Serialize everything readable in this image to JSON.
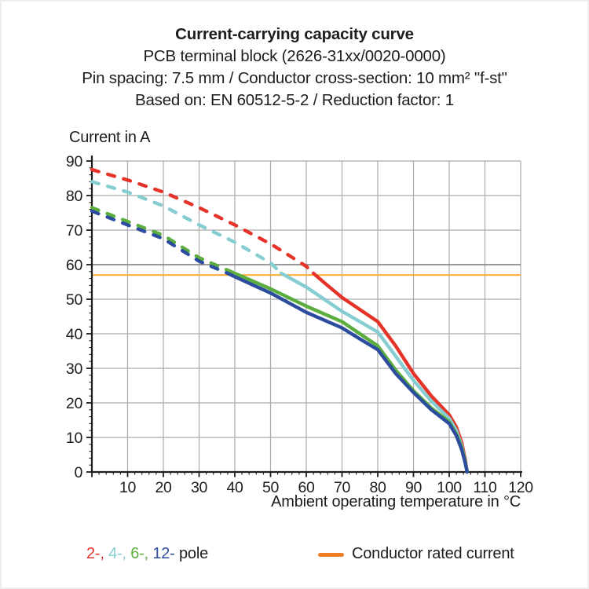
{
  "title": {
    "line1": "Current-carrying capacity curve",
    "line2": "PCB terminal block (2626-31xx/0020-0000)",
    "line3": "Pin spacing: 7.5 mm / Conductor cross-section: 10 mm² \"f-st\"",
    "line4": "Based on: EN 60512-5-2 / Reduction factor: 1"
  },
  "legend": {
    "pole_parts": [
      {
        "text": "2-,",
        "color": "#E5332A"
      },
      {
        "text": "4-,",
        "color": "#86CDD2"
      },
      {
        "text": "6-,",
        "color": "#5BAD3E"
      },
      {
        "text": "12-",
        "color": "#2C4D9E"
      },
      {
        "text": "pole",
        "color": "#1D1D1B"
      }
    ],
    "rated_current_label": "Conductor rated current",
    "rated_current_swatch_color": "#EE7D23"
  },
  "chart_data": {
    "type": "line",
    "title": "Current-carrying capacity curve",
    "xlabel": "Ambient operating temperature in °C",
    "ylabel": "Current in A",
    "xlim": [
      0,
      120
    ],
    "ylim": [
      0,
      90
    ],
    "xticks": [
      10,
      20,
      30,
      40,
      50,
      60,
      70,
      80,
      90,
      100,
      110,
      120
    ],
    "yticks": [
      0,
      10,
      20,
      30,
      40,
      50,
      60,
      70,
      80,
      90
    ],
    "minor_tick_step": 2,
    "grid": true,
    "colors": {
      "grid": "#ABABAB",
      "emphasized_grid": "#7F7F7F",
      "axis": "#1D1D1B",
      "rated_current_line": "#F9AE3D"
    },
    "reference_lines": [
      {
        "name": "conductor-rated-current",
        "axis": "y",
        "value": 57,
        "color": "#F9AE3D",
        "width": 2.2
      },
      {
        "name": "emphasized-60A-gridline",
        "axis": "y",
        "value": 60,
        "color": "#7F7F7F",
        "width": 1.6
      }
    ],
    "line_style_note": "curves dashed above conductor rated current, solid below",
    "series": [
      {
        "name": "2-pole",
        "color": "#E5332A",
        "transition_temp": 62,
        "points": [
          [
            0,
            87.5
          ],
          [
            10,
            84.5
          ],
          [
            20,
            81
          ],
          [
            30,
            76.5
          ],
          [
            40,
            71.5
          ],
          [
            50,
            66
          ],
          [
            55,
            62.8
          ],
          [
            60,
            59.5
          ],
          [
            62,
            57.5
          ],
          [
            65,
            54.8
          ],
          [
            70,
            50.5
          ],
          [
            75,
            47
          ],
          [
            80,
            43.5
          ],
          [
            85,
            36.5
          ],
          [
            90,
            28.5
          ],
          [
            95,
            22
          ],
          [
            100,
            16.5
          ],
          [
            102,
            13
          ],
          [
            103.5,
            8.5
          ],
          [
            104.5,
            3.5
          ],
          [
            105,
            0
          ]
        ]
      },
      {
        "name": "4-pole",
        "color": "#86CDD2",
        "transition_temp": 53,
        "points": [
          [
            0,
            84
          ],
          [
            10,
            81
          ],
          [
            20,
            77
          ],
          [
            30,
            71.5
          ],
          [
            40,
            66.5
          ],
          [
            50,
            60.5
          ],
          [
            53,
            57.5
          ],
          [
            60,
            53.5
          ],
          [
            65,
            50
          ],
          [
            70,
            46.5
          ],
          [
            75,
            43.5
          ],
          [
            80,
            40.5
          ],
          [
            85,
            33.5
          ],
          [
            90,
            26.5
          ],
          [
            95,
            20.5
          ],
          [
            100,
            15.5
          ],
          [
            102,
            12
          ],
          [
            103.5,
            7.5
          ],
          [
            104.5,
            3
          ],
          [
            105,
            0
          ]
        ]
      },
      {
        "name": "6-pole",
        "color": "#5BAD3E",
        "transition_temp": 40,
        "points": [
          [
            0,
            76.5
          ],
          [
            10,
            72.5
          ],
          [
            20,
            68.5
          ],
          [
            30,
            62
          ],
          [
            40,
            57.5
          ],
          [
            50,
            53
          ],
          [
            60,
            48
          ],
          [
            70,
            43.5
          ],
          [
            75,
            40
          ],
          [
            80,
            36.5
          ],
          [
            85,
            29.5
          ],
          [
            90,
            23.5
          ],
          [
            95,
            18.5
          ],
          [
            100,
            14.5
          ],
          [
            102,
            11
          ],
          [
            103.5,
            7
          ],
          [
            104.5,
            3
          ],
          [
            105,
            0
          ]
        ]
      },
      {
        "name": "12-pole",
        "color": "#2C4D9E",
        "transition_temp": 38,
        "points": [
          [
            0,
            75.5
          ],
          [
            10,
            71.5
          ],
          [
            20,
            67.5
          ],
          [
            30,
            61
          ],
          [
            38,
            57.5
          ],
          [
            40,
            56.5
          ],
          [
            50,
            51.8
          ],
          [
            60,
            46.2
          ],
          [
            70,
            41.7
          ],
          [
            75,
            38.5
          ],
          [
            80,
            35.4
          ],
          [
            85,
            28.5
          ],
          [
            90,
            23
          ],
          [
            95,
            18
          ],
          [
            100,
            14
          ],
          [
            102,
            10.5
          ],
          [
            103.5,
            6.5
          ],
          [
            104.5,
            2.5
          ],
          [
            105,
            0
          ]
        ]
      }
    ]
  }
}
